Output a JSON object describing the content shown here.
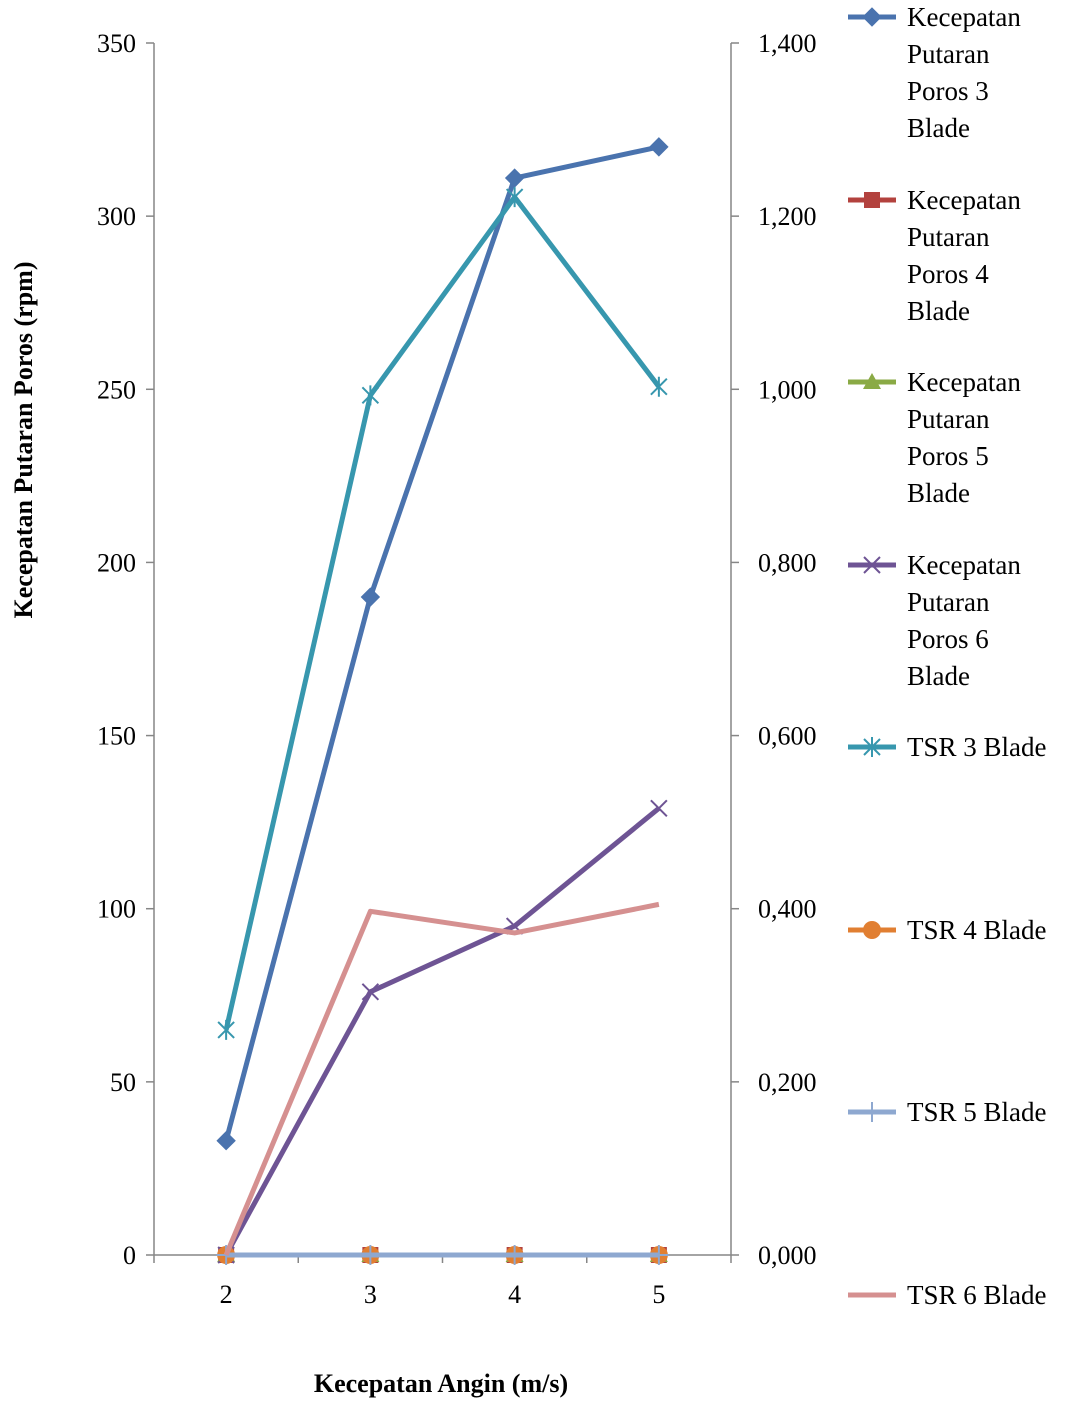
{
  "chart_data": {
    "type": "line",
    "title": "",
    "xlabel": "Kecepatan Angin (m/s)",
    "ylabel": "Kecepatan Putaran Poros (rpm)",
    "y2label": "",
    "categories": [
      "2",
      "3",
      "4",
      "5"
    ],
    "ylim": [
      0,
      350
    ],
    "y2lim": [
      0,
      1.4
    ],
    "y_ticks": [
      "0",
      "50",
      "100",
      "150",
      "200",
      "250",
      "300",
      "350"
    ],
    "y2_ticks": [
      "0,000",
      "0,200",
      "0,400",
      "0,600",
      "0,800",
      "1,000",
      "1,200",
      "1,400"
    ],
    "grid": false,
    "legend_position": "right",
    "series": [
      {
        "name": "Kecepatan Putaran Poros 3 Blade",
        "legend_lines": [
          "Kecepatan",
          "Putaran",
          "Poros 3",
          "Blade"
        ],
        "axis": "left",
        "color": "#4A73AE",
        "marker": "diamond",
        "values": [
          33,
          190,
          311,
          320
        ]
      },
      {
        "name": "Kecepatan Putaran Poros 4 Blade",
        "legend_lines": [
          "Kecepatan",
          "Putaran",
          "Poros 4",
          "Blade"
        ],
        "axis": "left",
        "color": "#B3423E",
        "marker": "square",
        "values": [
          0,
          0,
          0,
          0
        ]
      },
      {
        "name": "Kecepatan Putaran Poros 5 Blade",
        "legend_lines": [
          "Kecepatan",
          "Putaran",
          "Poros 5",
          "Blade"
        ],
        "axis": "left",
        "color": "#8AAA45",
        "marker": "triangle",
        "values": [
          0,
          0,
          0,
          0
        ]
      },
      {
        "name": "Kecepatan Putaran Poros 6 Blade",
        "legend_lines": [
          "Kecepatan",
          "Putaran",
          "Poros 6",
          "Blade"
        ],
        "axis": "left",
        "color": "#6E5494",
        "marker": "x",
        "values": [
          0,
          76,
          95,
          129
        ]
      },
      {
        "name": "TSR 3 Blade",
        "legend_lines": [
          "TSR 3 Blade"
        ],
        "axis": "right",
        "color": "#3797AE",
        "marker": "star",
        "values": [
          0.26,
          0.993,
          1.222,
          1.003
        ]
      },
      {
        "name": "TSR 4 Blade",
        "legend_lines": [
          "TSR 4 Blade"
        ],
        "axis": "right",
        "color": "#E17F32",
        "marker": "circle",
        "values": [
          0,
          0,
          0,
          0
        ]
      },
      {
        "name": "TSR 5 Blade",
        "legend_lines": [
          "TSR 5 Blade"
        ],
        "axis": "right",
        "color": "#8EA8D0",
        "marker": "plus",
        "values": [
          0,
          0,
          0,
          0
        ]
      },
      {
        "name": "TSR 6 Blade",
        "legend_lines": [
          "TSR 6 Blade"
        ],
        "axis": "right",
        "color": "#D59090",
        "marker": "none",
        "values": [
          0,
          0.397,
          0.372,
          0.405
        ]
      }
    ]
  }
}
